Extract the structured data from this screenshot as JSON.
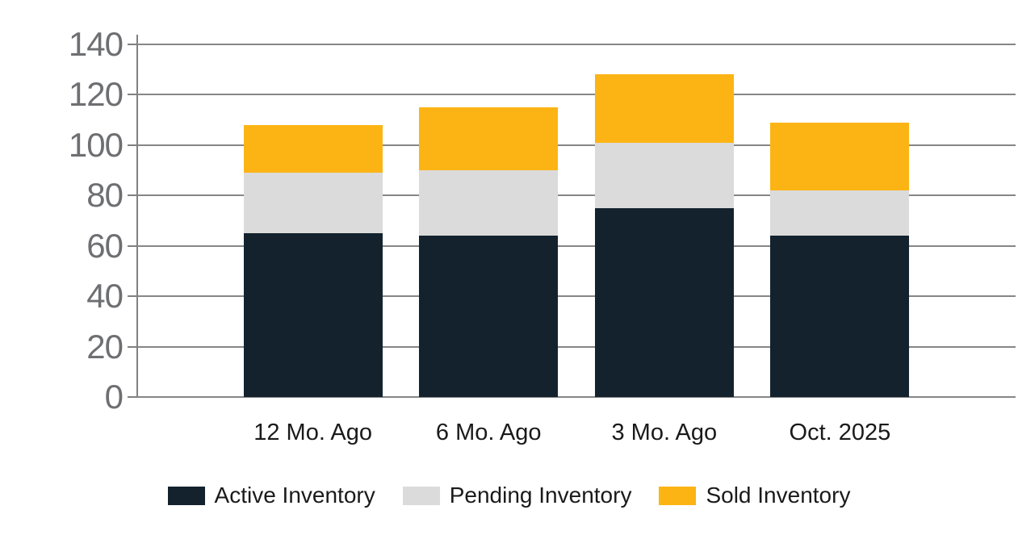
{
  "chart_data": {
    "type": "bar",
    "stacked": true,
    "title": "",
    "xlabel": "",
    "ylabel": "",
    "categories": [
      "12 Mo. Ago",
      "6 Mo. Ago",
      "3 Mo. Ago",
      "Oct. 2025"
    ],
    "series": [
      {
        "name": "Active Inventory",
        "color": "#14222e",
        "values": [
          65,
          64,
          75,
          64
        ]
      },
      {
        "name": "Pending Inventory",
        "color": "#dbdbdb",
        "values": [
          24,
          26,
          26,
          18
        ]
      },
      {
        "name": "Sold Inventory",
        "color": "#fcb415",
        "values": [
          19,
          25,
          27,
          27
        ]
      }
    ],
    "stack_totals": [
      108,
      115,
      128,
      109
    ],
    "ylim": [
      0,
      140
    ],
    "yticks": [
      0,
      20,
      40,
      60,
      80,
      100,
      120,
      140
    ],
    "grid": true,
    "grid_color": "#868686",
    "axis_color": "#808080",
    "ytick_label_color": "#6e6f72",
    "xtick_label_color": "#1a1a1a",
    "legend_position": "bottom",
    "legend": [
      "Active Inventory",
      "Pending Inventory",
      "Sold Inventory"
    ]
  }
}
